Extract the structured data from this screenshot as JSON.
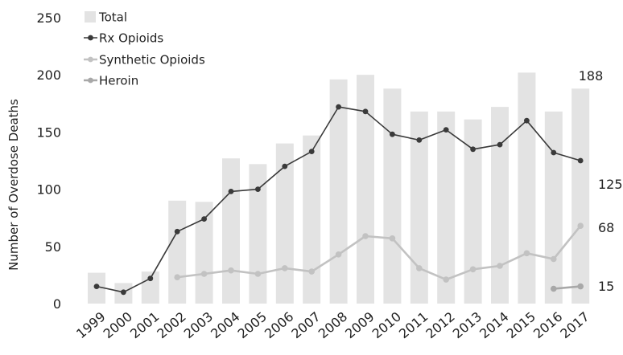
{
  "chart_data": {
    "type": "bar",
    "title": "",
    "xlabel": "",
    "ylabel": "Number of Overdose Deaths",
    "ylim": [
      0,
      250
    ],
    "yticks": [
      0,
      50,
      100,
      150,
      200,
      250
    ],
    "grid": false,
    "legend_position": "top-left",
    "categories": [
      "1999",
      "2000",
      "2001",
      "2002",
      "2003",
      "2004",
      "2005",
      "2006",
      "2007",
      "2008",
      "2009",
      "2010",
      "2011",
      "2012",
      "2013",
      "2014",
      "2015",
      "2016",
      "2017"
    ],
    "series": [
      {
        "name": "Total",
        "kind": "bar",
        "color": "#e3e3e3",
        "values": [
          27,
          18,
          28,
          90,
          89,
          127,
          122,
          140,
          147,
          196,
          200,
          188,
          168,
          168,
          161,
          172,
          202,
          168,
          188
        ],
        "end_label": "188"
      },
      {
        "name": "Rx Opioids",
        "kind": "line",
        "color": "#3a3a3a",
        "values": [
          15,
          10,
          22,
          63,
          74,
          98,
          100,
          120,
          133,
          172,
          168,
          148,
          143,
          152,
          135,
          139,
          160,
          132,
          125
        ],
        "end_label": "125"
      },
      {
        "name": "Synthetic Opioids",
        "kind": "line",
        "color": "#c2c2c2",
        "values": [
          null,
          null,
          null,
          23,
          26,
          29,
          26,
          31,
          28,
          43,
          59,
          57,
          31,
          21,
          30,
          33,
          44,
          39,
          68
        ],
        "end_label": "68"
      },
      {
        "name": "Heroin",
        "kind": "line",
        "color": "#a8a8a8",
        "values": [
          null,
          null,
          null,
          null,
          null,
          null,
          null,
          null,
          null,
          null,
          null,
          null,
          null,
          null,
          null,
          null,
          null,
          13,
          15
        ],
        "end_label": "15"
      }
    ]
  }
}
